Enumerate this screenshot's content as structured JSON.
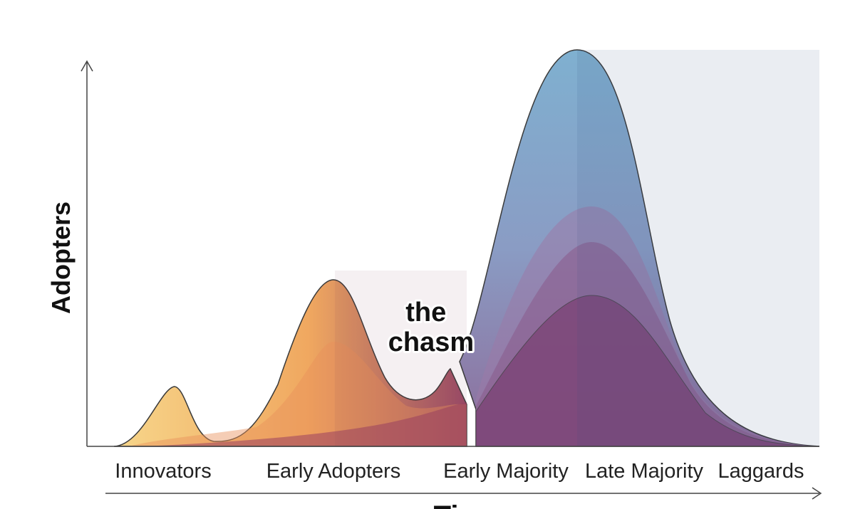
{
  "axes": {
    "y_label": "Adopters",
    "x_label": "Time"
  },
  "annotation": {
    "lines": [
      "the",
      "chasm"
    ]
  },
  "segments": [
    "Innovators",
    "Early Adopters",
    "Early Majority",
    "Late Majority",
    "Laggards"
  ]
}
